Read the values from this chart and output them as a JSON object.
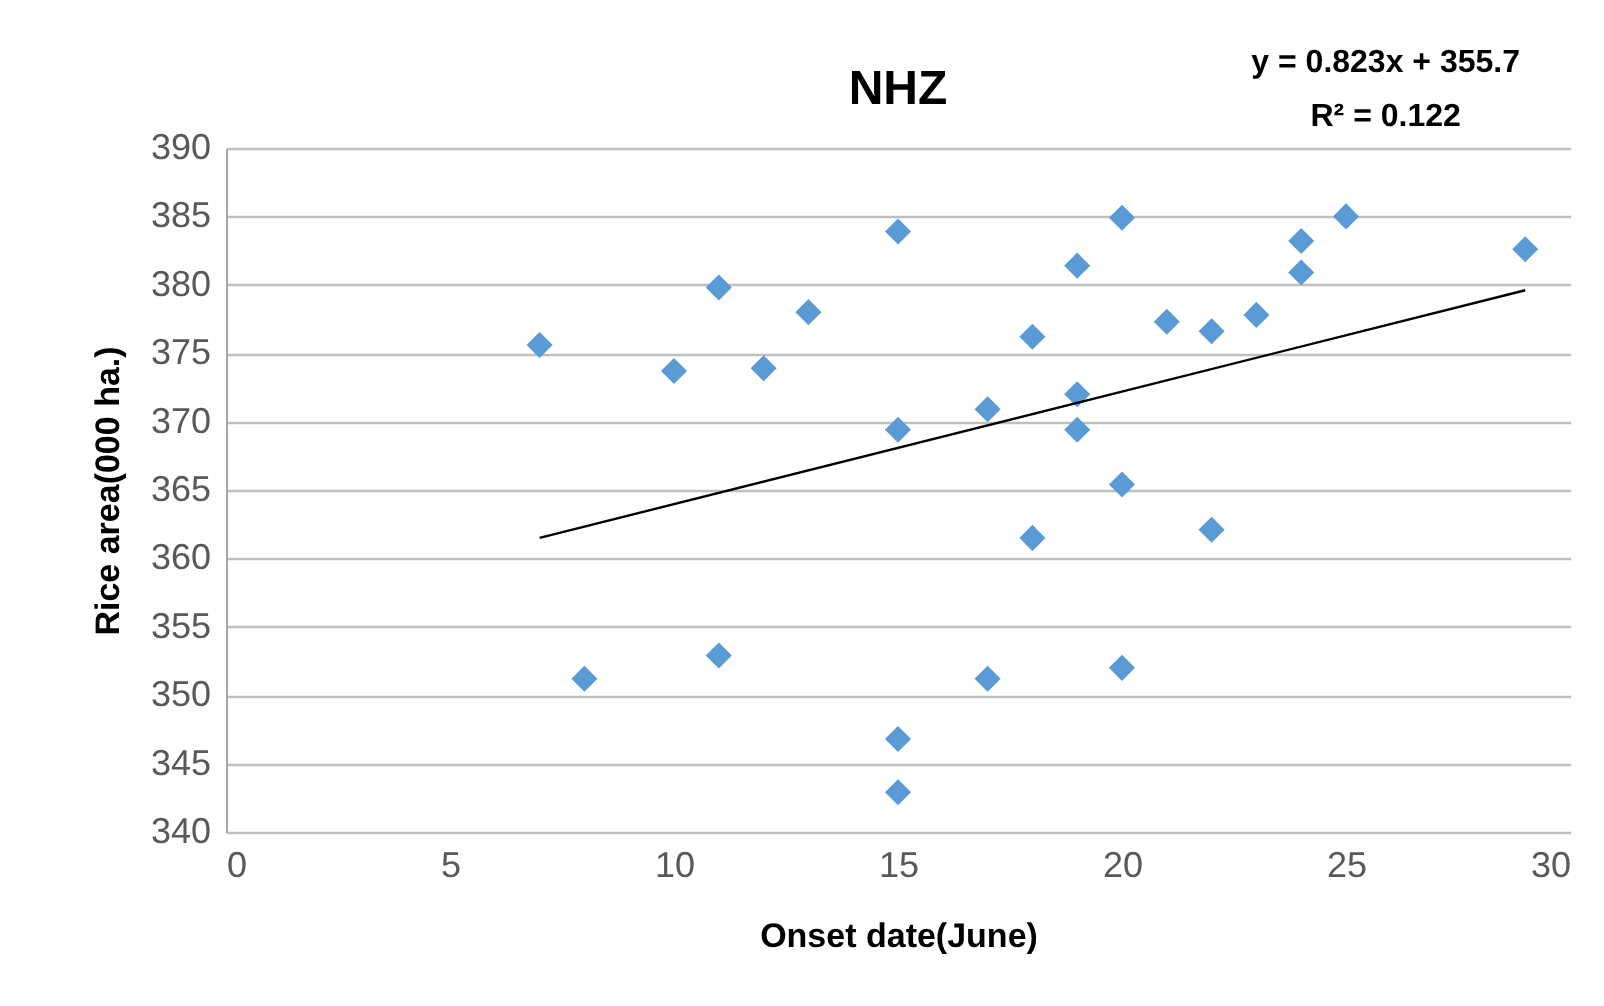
{
  "chart_data": {
    "type": "scatter",
    "title": "NHZ",
    "xlabel": "Onset date(June)",
    "ylabel": "Rice area(000 ha.)",
    "annotations": [
      "y = 0.823x + 355.7",
      "R² = 0.122"
    ],
    "series": [
      {
        "color": "#5b9bd5",
        "x": [
          7,
          8,
          10,
          11,
          11,
          12,
          13,
          15,
          15,
          15,
          15,
          17,
          17,
          18,
          18,
          19,
          19,
          19,
          20,
          20,
          20,
          21,
          22,
          22,
          23,
          24,
          24,
          25,
          29
        ],
        "values": [
          375.6,
          351.2,
          373.7,
          379.8,
          352.9,
          373.9,
          378,
          383.9,
          369.4,
          346.8,
          342.9,
          370.9,
          351.2,
          376.2,
          361.5,
          381.4,
          372,
          369.4,
          384.9,
          365.4,
          352,
          377.3,
          376.6,
          362.1,
          377.8,
          383.2,
          380.9,
          385,
          382.6
        ]
      },
      {
        "type": "line",
        "marker": "none",
        "color": "#000000",
        "x": [
          7,
          29
        ],
        "values": [
          361.5,
          379.6
        ]
      }
    ],
    "xlim": [
      0,
      30
    ],
    "xticks": [
      0,
      5,
      10,
      15,
      20,
      25,
      30
    ],
    "ylim": [
      340,
      390
    ],
    "yticks": [
      340,
      345,
      350,
      355,
      360,
      365,
      370,
      375,
      380,
      385,
      390
    ],
    "grid": "y",
    "marker": "diamond"
  }
}
